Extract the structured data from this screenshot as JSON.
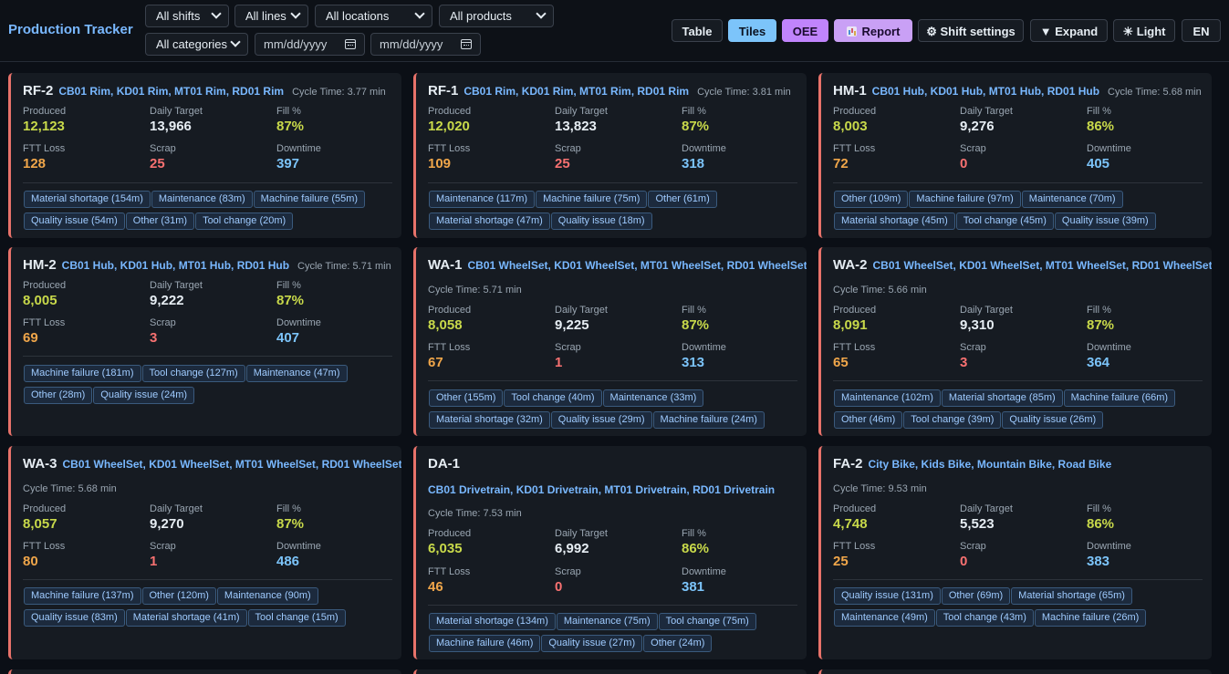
{
  "app": {
    "title": "Production Tracker"
  },
  "filters": {
    "shift": "All shifts",
    "line": "All lines",
    "location": "All locations",
    "product": "All products",
    "category": "All categories",
    "date_from_placeholder": "mm/dd/yyyy",
    "date_to_placeholder": "mm/dd/yyyy"
  },
  "toolbar": {
    "table": "Table",
    "tiles": "Tiles",
    "oee": "OEE",
    "report": "Report",
    "shift_settings": "⚙ Shift settings",
    "expand": "▼ Expand",
    "light": "☀ Light",
    "lang": "EN"
  },
  "labels": {
    "produced": "Produced",
    "daily_target": "Daily Target",
    "fill": "Fill %",
    "ftt_loss": "FTT Loss",
    "scrap": "Scrap",
    "downtime": "Downtime"
  },
  "cards": [
    {
      "code": "RF-2",
      "products": "CB01 Rim, KD01 Rim, MT01 Rim, RD01 Rim",
      "cycle": "Cycle Time: 3.77 min",
      "produced": "12,123",
      "target": "13,966",
      "fill": "87%",
      "ftt": "128",
      "scrap": "25",
      "downtime": "397",
      "reasons": [
        "Material shortage (154m)",
        "Maintenance (83m)",
        "Machine failure (55m)",
        "Quality issue (54m)",
        "Other (31m)",
        "Tool change (20m)"
      ]
    },
    {
      "code": "RF-1",
      "products": "CB01 Rim, KD01 Rim, MT01 Rim, RD01 Rim",
      "cycle": "Cycle Time: 3.81 min",
      "produced": "12,020",
      "target": "13,823",
      "fill": "87%",
      "ftt": "109",
      "scrap": "25",
      "downtime": "318",
      "reasons": [
        "Maintenance (117m)",
        "Machine failure (75m)",
        "Other (61m)",
        "Material shortage (47m)",
        "Quality issue (18m)"
      ]
    },
    {
      "code": "HM-1",
      "products": "CB01 Hub, KD01 Hub, MT01 Hub, RD01 Hub",
      "cycle": "Cycle Time: 5.68 min",
      "produced": "8,003",
      "target": "9,276",
      "fill": "86%",
      "ftt": "72",
      "scrap": "0",
      "downtime": "405",
      "reasons": [
        "Other (109m)",
        "Machine failure (97m)",
        "Maintenance (70m)",
        "Material shortage (45m)",
        "Tool change (45m)",
        "Quality issue (39m)"
      ]
    },
    {
      "code": "HM-2",
      "products": "CB01 Hub, KD01 Hub, MT01 Hub, RD01 Hub",
      "cycle": "Cycle Time: 5.71 min",
      "produced": "8,005",
      "target": "9,222",
      "fill": "87%",
      "ftt": "69",
      "scrap": "3",
      "downtime": "407",
      "reasons": [
        "Machine failure (181m)",
        "Tool change (127m)",
        "Maintenance (47m)",
        "Other (28m)",
        "Quality issue (24m)"
      ]
    },
    {
      "code": "WA-1",
      "products": "CB01 WheelSet, KD01 WheelSet, MT01 WheelSet, RD01 WheelSet",
      "cycle": "Cycle Time: 5.71 min",
      "produced": "8,058",
      "target": "9,225",
      "fill": "87%",
      "ftt": "67",
      "scrap": "1",
      "downtime": "313",
      "reasons": [
        "Other (155m)",
        "Tool change (40m)",
        "Maintenance (33m)",
        "Material shortage (32m)",
        "Quality issue (29m)",
        "Machine failure (24m)"
      ]
    },
    {
      "code": "WA-2",
      "products": "CB01 WheelSet, KD01 WheelSet, MT01 WheelSet, RD01 WheelSet",
      "cycle": "Cycle Time: 5.66 min",
      "produced": "8,091",
      "target": "9,310",
      "fill": "87%",
      "ftt": "65",
      "scrap": "3",
      "downtime": "364",
      "reasons": [
        "Maintenance (102m)",
        "Material shortage (85m)",
        "Machine failure (66m)",
        "Other (46m)",
        "Tool change (39m)",
        "Quality issue (26m)"
      ]
    },
    {
      "code": "WA-3",
      "products": "CB01 WheelSet, KD01 WheelSet, MT01 WheelSet, RD01 WheelSet",
      "cycle": "Cycle Time: 5.68 min",
      "produced": "8,057",
      "target": "9,270",
      "fill": "87%",
      "ftt": "80",
      "scrap": "1",
      "downtime": "486",
      "reasons": [
        "Machine failure (137m)",
        "Other (120m)",
        "Maintenance (90m)",
        "Quality issue (83m)",
        "Material shortage (41m)",
        "Tool change (15m)"
      ]
    },
    {
      "code": "DA-1",
      "products": "CB01 Drivetrain, KD01 Drivetrain, MT01 Drivetrain, RD01 Drivetrain",
      "cycle": "Cycle Time: 7.53 min",
      "produced": "6,035",
      "target": "6,992",
      "fill": "86%",
      "ftt": "46",
      "scrap": "0",
      "downtime": "381",
      "reasons": [
        "Material shortage (134m)",
        "Maintenance (75m)",
        "Tool change (75m)",
        "Machine failure (46m)",
        "Quality issue (27m)",
        "Other (24m)"
      ]
    },
    {
      "code": "FA-2",
      "products": "City Bike, Kids Bike, Mountain Bike, Road Bike",
      "cycle": "Cycle Time: 9.53 min",
      "produced": "4,748",
      "target": "5,523",
      "fill": "86%",
      "ftt": "25",
      "scrap": "0",
      "downtime": "383",
      "reasons": [
        "Quality issue (131m)",
        "Other (69m)",
        "Material shortage (65m)",
        "Maintenance (49m)",
        "Tool change (43m)",
        "Machine failure (26m)"
      ]
    }
  ]
}
